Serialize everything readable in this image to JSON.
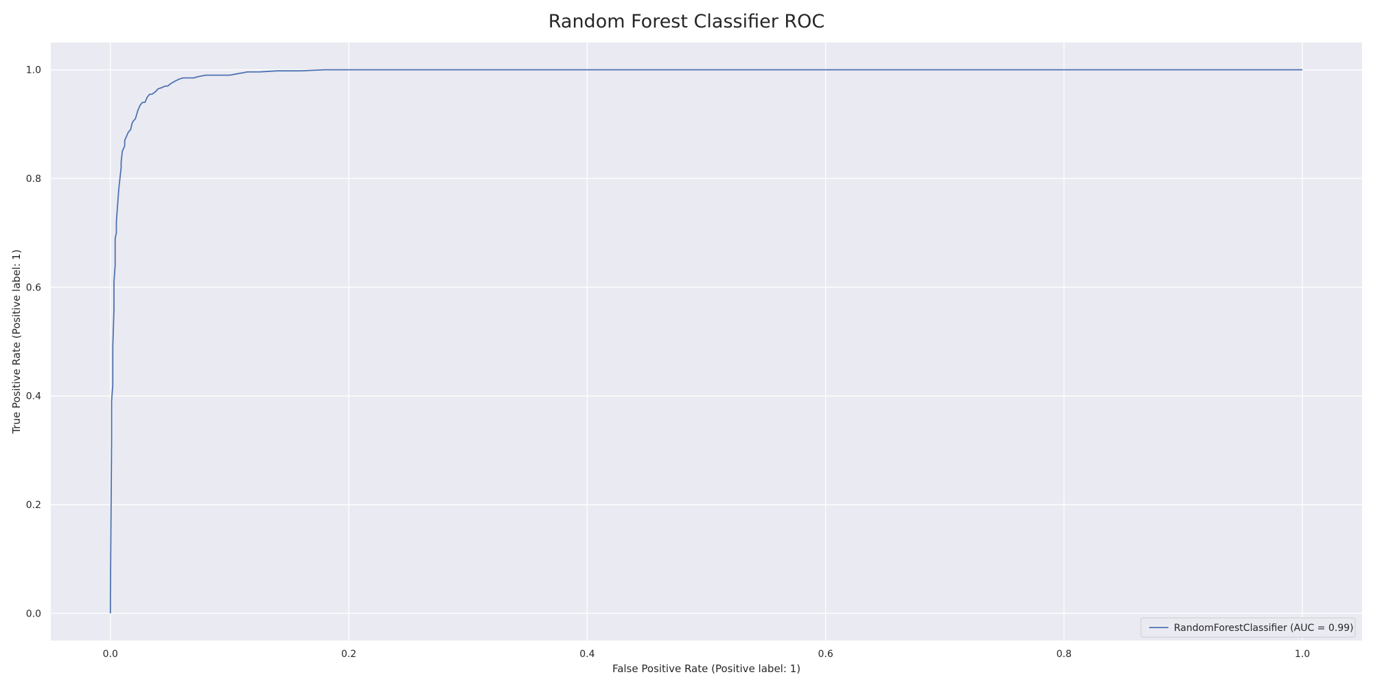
{
  "colors": {
    "plot_background": "#eaeaf2",
    "grid": "#ffffff",
    "line": "#4c72b0",
    "legend_background": "#eaeaf2",
    "legend_border": "#cccccc"
  },
  "chart_data": {
    "type": "line",
    "title": "Random Forest Classifier ROC",
    "xlabel": "False Positive Rate (Positive label: 1)",
    "ylabel": "True Positive Rate (Positive label: 1)",
    "xlim": [
      -0.05,
      1.05
    ],
    "ylim": [
      -0.05,
      1.05
    ],
    "xticks": [
      0.0,
      0.2,
      0.4,
      0.6,
      0.8,
      1.0
    ],
    "xtick_labels": [
      "0.0",
      "0.2",
      "0.4",
      "0.6",
      "0.8",
      "1.0"
    ],
    "yticks": [
      0.0,
      0.2,
      0.4,
      0.6,
      0.8,
      1.0
    ],
    "ytick_labels": [
      "0.0",
      "0.2",
      "0.4",
      "0.6",
      "0.8",
      "1.0"
    ],
    "grid": true,
    "legend_position": "lower-right",
    "series": [
      {
        "name": "RandomForestClassifier (AUC = 0.99)",
        "x": [
          0.0,
          0.0,
          0.001,
          0.001,
          0.001,
          0.002,
          0.002,
          0.003,
          0.003,
          0.004,
          0.004,
          0.004,
          0.005,
          0.005,
          0.006,
          0.007,
          0.008,
          0.009,
          0.009,
          0.01,
          0.011,
          0.012,
          0.012,
          0.013,
          0.014,
          0.015,
          0.017,
          0.018,
          0.019,
          0.021,
          0.023,
          0.025,
          0.027,
          0.029,
          0.03,
          0.031,
          0.033,
          0.035,
          0.038,
          0.04,
          0.043,
          0.046,
          0.048,
          0.051,
          0.055,
          0.058,
          0.061,
          0.065,
          0.07,
          0.073,
          0.075,
          0.08,
          0.087,
          0.093,
          0.1,
          0.105,
          0.11,
          0.115,
          0.125,
          0.14,
          0.15,
          0.16,
          0.17,
          0.18,
          0.19,
          0.195,
          0.2,
          0.205,
          0.3,
          0.5,
          0.7,
          0.9,
          1.0
        ],
        "y": [
          0.0,
          0.03,
          0.32,
          0.34,
          0.39,
          0.42,
          0.49,
          0.56,
          0.61,
          0.64,
          0.67,
          0.69,
          0.7,
          0.72,
          0.75,
          0.78,
          0.8,
          0.82,
          0.83,
          0.85,
          0.855,
          0.86,
          0.87,
          0.875,
          0.88,
          0.885,
          0.89,
          0.9,
          0.905,
          0.91,
          0.925,
          0.935,
          0.94,
          0.94,
          0.945,
          0.95,
          0.955,
          0.955,
          0.96,
          0.965,
          0.967,
          0.97,
          0.97,
          0.975,
          0.98,
          0.983,
          0.985,
          0.985,
          0.985,
          0.987,
          0.988,
          0.99,
          0.99,
          0.99,
          0.99,
          0.992,
          0.994,
          0.996,
          0.996,
          0.998,
          0.998,
          0.998,
          0.999,
          1.0,
          1.0,
          1.0,
          1.0,
          1.0,
          1.0,
          1.0,
          1.0,
          1.0,
          1.0
        ]
      }
    ]
  }
}
